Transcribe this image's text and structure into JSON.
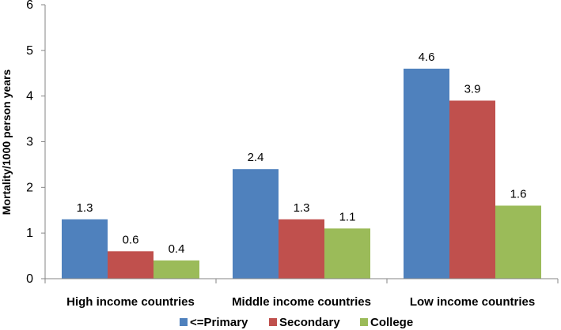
{
  "chart_data": {
    "type": "bar",
    "title": "",
    "xlabel": "",
    "ylabel": "Mortality/1000 person years",
    "ylim": [
      0,
      6
    ],
    "yticks": [
      0,
      1,
      2,
      3,
      4,
      5,
      6
    ],
    "grid": false,
    "legend_position": "bottom",
    "categories": [
      "High income countries",
      "Middle income countries",
      "Low income countries"
    ],
    "series": [
      {
        "name": "<=Primary",
        "color": "#4f81bd",
        "values": [
          1.3,
          2.4,
          4.6
        ],
        "labels": [
          "1.3",
          "2.4",
          "4.6"
        ]
      },
      {
        "name": "Secondary",
        "color": "#c0504d",
        "values": [
          0.6,
          1.3,
          3.9
        ],
        "labels": [
          "0.6",
          "1.3",
          "3.9"
        ]
      },
      {
        "name": "College",
        "color": "#9bbb59",
        "values": [
          0.4,
          1.1,
          1.6
        ],
        "labels": [
          "0.4",
          "1.1",
          "1.6"
        ]
      }
    ]
  }
}
